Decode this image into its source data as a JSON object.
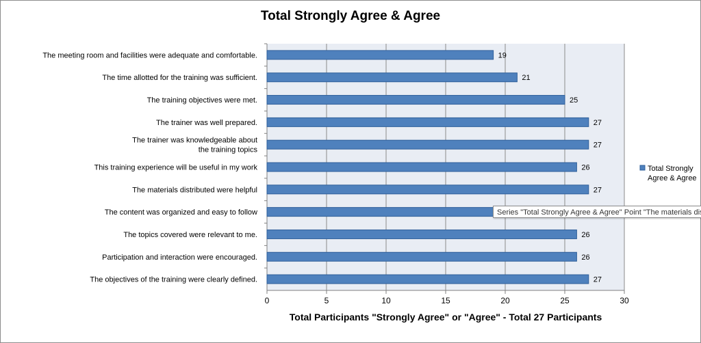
{
  "chart_data": {
    "type": "bar",
    "orientation": "horizontal",
    "title": "Total Strongly Agree & Agree",
    "xlabel": "Total Participants \"Strongly Agree\" or \"Agree\" - Total 27 Participants",
    "ylabel": "",
    "xlim": [
      0,
      30
    ],
    "xticks": [
      "0",
      "5",
      "10",
      "15",
      "20",
      "25",
      "30"
    ],
    "grid": true,
    "legend_position": "right",
    "series": [
      {
        "name": "Total Strongly Agree & Agree",
        "color": "#4f81bd",
        "values": [
          19,
          21,
          25,
          27,
          27,
          26,
          27,
          27,
          26,
          26,
          27
        ]
      }
    ],
    "categories": [
      [
        "The meeting room and facilities were adequate and comfortable."
      ],
      [
        "The time allotted for the training was sufficient."
      ],
      [
        "The training objectives were met."
      ],
      [
        "The trainer was well prepared."
      ],
      [
        "The trainer was knowledgeable about",
        "the training topics"
      ],
      [
        "This training experience will be useful  in my work"
      ],
      [
        "The materials distributed were helpful"
      ],
      [
        "The content was organized and easy to follow"
      ],
      [
        "The topics covered were relevant   to me."
      ],
      [
        "Participation and interaction were encouraged."
      ],
      [
        "The objectives of the training were clearly defined."
      ]
    ],
    "data_labels": [
      "19",
      "21",
      "25",
      "27",
      "27",
      "26",
      "27",
      "",
      "26",
      "26",
      "27"
    ],
    "legend_lines": [
      "Total Strongly",
      "Agree & Agree"
    ]
  },
  "tooltip": {
    "text": "Series \"Total Strongly Agree & Agree\" Point \"The materials distributed were helpful\""
  }
}
